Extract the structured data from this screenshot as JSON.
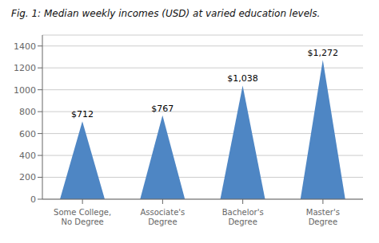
{
  "chart_data": {
    "type": "bar",
    "title": "Fig. 1: Median weekly incomes (USD) at varied education levels.",
    "categories": [
      "Some College, No Degree",
      "Associate's Degree",
      "Bachelor's Degree",
      "Master's Degree"
    ],
    "values": [
      712,
      767,
      1038,
      1272
    ],
    "value_labels": [
      "$712",
      "$767",
      "$1,038",
      "$1,272"
    ],
    "data_labels": true,
    "color": "#4e86c4",
    "ylim": [
      0,
      1500
    ],
    "yticks": [
      0,
      200,
      400,
      600,
      800,
      1000,
      1200,
      1400
    ],
    "grid": true
  }
}
